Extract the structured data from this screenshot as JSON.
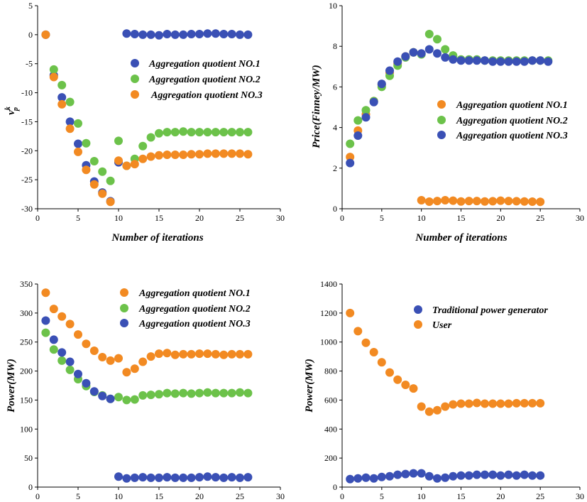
{
  "colors": {
    "blue": "#3a50b5",
    "green": "#6cc24a",
    "orange": "#f28a22"
  },
  "chart_data": [
    {
      "type": "scatter",
      "id": "vp",
      "xlabel": "Number of iterations",
      "ylabel_main": "v",
      "ylabel_sup": "k",
      "ylabel_sub": "p",
      "xlim": [
        0,
        30
      ],
      "ylim": [
        -30,
        5
      ],
      "xticks": [
        "0",
        "5",
        "10",
        "15",
        "20",
        "25",
        "30"
      ],
      "yticks": [
        "5",
        "0",
        "-5",
        "-10",
        "-15",
        "-20",
        "-25",
        "-30"
      ],
      "legend_position": "middle-right",
      "series": [
        {
          "name": "Aggregation quotient NO.1",
          "color": "blue",
          "x": [
            1,
            2,
            3,
            4,
            5,
            6,
            7,
            8,
            9,
            10,
            11,
            12,
            13,
            14,
            15,
            16,
            17,
            18,
            19,
            20,
            21,
            22,
            23,
            24,
            25,
            26
          ],
          "y": [
            0,
            -7,
            -10.8,
            -15,
            -18.8,
            -22.5,
            -25.3,
            -27.2,
            -28.7,
            -22,
            0.2,
            0.1,
            0,
            0,
            -0.1,
            0.1,
            0,
            0,
            0.1,
            0.1,
            0.2,
            0.2,
            0.1,
            0.1,
            0,
            0
          ]
        },
        {
          "name": "Aggregation quotient NO.2",
          "color": "green",
          "x": [
            2,
            3,
            4,
            5,
            6,
            7,
            8,
            9,
            10,
            11,
            12,
            13,
            14,
            15,
            16,
            17,
            18,
            19,
            20,
            21,
            22,
            23,
            24,
            25,
            26
          ],
          "y": [
            -6,
            -8.7,
            -11.6,
            -15.3,
            -18.7,
            -21.8,
            -23.6,
            -25.2,
            -18.3,
            -22.6,
            -21.4,
            -19.2,
            -17.7,
            -17,
            -16.8,
            -16.8,
            -16.7,
            -16.8,
            -16.8,
            -16.8,
            -16.8,
            -16.8,
            -16.8,
            -16.8,
            -16.8
          ]
        },
        {
          "name": "Aggregation quotient NO.3",
          "color": "orange",
          "x": [
            1,
            2,
            3,
            4,
            5,
            6,
            7,
            8,
            9,
            10,
            11,
            12,
            13,
            14,
            15,
            16,
            17,
            18,
            19,
            20,
            21,
            22,
            23,
            24,
            25,
            26
          ],
          "y": [
            0,
            -7.3,
            -12,
            -16.2,
            -20.2,
            -23.3,
            -25.8,
            -27.4,
            -28.8,
            -21.7,
            -22.6,
            -22.3,
            -21.4,
            -21,
            -20.8,
            -20.7,
            -20.7,
            -20.7,
            -20.6,
            -20.6,
            -20.5,
            -20.5,
            -20.5,
            -20.5,
            -20.5,
            -20.6
          ]
        }
      ]
    },
    {
      "type": "scatter",
      "id": "price",
      "xlabel": "Number of iterations",
      "ylabel_main": "Price(Finney/MW)",
      "xlim": [
        0,
        30
      ],
      "ylim": [
        0,
        10
      ],
      "xticks": [
        "0",
        "5",
        "10",
        "15",
        "20",
        "25",
        "30"
      ],
      "yticks": [
        "10",
        "8",
        "6",
        "4",
        "2",
        "0"
      ],
      "legend_position": "middle-right",
      "series": [
        {
          "name": "Aggregation quotient NO.1",
          "color": "orange",
          "x": [
            1,
            2,
            3,
            4,
            5,
            6,
            7,
            8,
            9,
            10,
            11,
            12,
            13,
            14,
            15,
            16,
            17,
            18,
            19,
            20,
            21,
            22,
            23,
            24,
            25
          ],
          "y": [
            2.55,
            3.85,
            4.65,
            5.3,
            6.1,
            6.7,
            7.15,
            7.5,
            7.7,
            0.42,
            0.35,
            0.38,
            0.42,
            0.4,
            0.36,
            0.38,
            0.38,
            0.36,
            0.37,
            0.4,
            0.38,
            0.37,
            0.36,
            0.35,
            0.34
          ]
        },
        {
          "name": "Aggregation quotient NO.2",
          "color": "green",
          "x": [
            1,
            2,
            3,
            4,
            5,
            6,
            7,
            8,
            9,
            10,
            11,
            12,
            13,
            14,
            15,
            16,
            17,
            18,
            19,
            20,
            21,
            22,
            23,
            24,
            25,
            26
          ],
          "y": [
            3.2,
            4.35,
            4.85,
            5.3,
            6.0,
            6.55,
            7.05,
            7.45,
            7.7,
            7.6,
            8.6,
            8.35,
            7.85,
            7.55,
            7.35,
            7.35,
            7.35,
            7.3,
            7.3,
            7.3,
            7.3,
            7.3,
            7.3,
            7.3,
            7.3,
            7.3
          ]
        },
        {
          "name": "Aggregation quotient NO.3",
          "color": "blue",
          "x": [
            1,
            2,
            3,
            4,
            5,
            6,
            7,
            8,
            9,
            10,
            11,
            12,
            13,
            14,
            15,
            16,
            17,
            18,
            19,
            20,
            21,
            22,
            23,
            24,
            25,
            26
          ],
          "y": [
            2.25,
            3.6,
            4.5,
            5.25,
            6.15,
            6.8,
            7.25,
            7.5,
            7.7,
            7.65,
            7.85,
            7.65,
            7.45,
            7.35,
            7.3,
            7.3,
            7.3,
            7.3,
            7.25,
            7.25,
            7.25,
            7.25,
            7.25,
            7.3,
            7.3,
            7.25
          ]
        }
      ]
    },
    {
      "type": "scatter",
      "id": "power_aq",
      "xlabel": "",
      "ylabel_main": "Power(MW)",
      "xlim": [
        0,
        30
      ],
      "ylim": [
        0,
        350
      ],
      "xticks": [
        "0",
        "5",
        "10",
        "15",
        "20",
        "25",
        "30"
      ],
      "yticks": [
        "350",
        "300",
        "250",
        "200",
        "150",
        "100",
        "50",
        "0"
      ],
      "legend_position": "top-right",
      "series": [
        {
          "name": "Aggregation quotient NO.1",
          "color": "orange",
          "x": [
            1,
            2,
            3,
            4,
            5,
            6,
            7,
            8,
            9,
            10,
            11,
            12,
            13,
            14,
            15,
            16,
            17,
            18,
            19,
            20,
            21,
            22,
            23,
            24,
            25,
            26
          ],
          "y": [
            335,
            307,
            294,
            281,
            263,
            247,
            235,
            224,
            218,
            222,
            198,
            204,
            216,
            225,
            230,
            231,
            228,
            229,
            229,
            230,
            230,
            229,
            228,
            229,
            229,
            229
          ]
        },
        {
          "name": "Aggregation quotient NO.2",
          "color": "green",
          "x": [
            1,
            2,
            3,
            4,
            5,
            6,
            7,
            8,
            9,
            10,
            11,
            12,
            13,
            14,
            15,
            16,
            17,
            18,
            19,
            20,
            21,
            22,
            23,
            24,
            25,
            26
          ],
          "y": [
            266,
            237,
            218,
            202,
            186,
            174,
            164,
            158,
            152,
            155,
            150,
            151,
            158,
            159,
            160,
            162,
            161,
            162,
            161,
            162,
            163,
            162,
            162,
            162,
            163,
            162
          ]
        },
        {
          "name": "Aggregation quotient NO.3",
          "color": "blue",
          "x": [
            1,
            2,
            3,
            4,
            5,
            6,
            7,
            8,
            9,
            10,
            11,
            12,
            13,
            14,
            15,
            16,
            17,
            18,
            19,
            20,
            21,
            22,
            23,
            24,
            25,
            26
          ],
          "y": [
            287,
            254,
            232,
            216,
            195,
            179,
            165,
            157,
            152,
            18,
            15,
            16,
            17,
            16,
            16,
            17,
            16,
            16,
            16,
            17,
            18,
            17,
            16,
            17,
            16,
            17
          ]
        }
      ]
    },
    {
      "type": "scatter",
      "id": "power_gen_user",
      "xlabel": "",
      "ylabel_main": "Power(MW)",
      "xlim": [
        0,
        30
      ],
      "ylim": [
        0,
        1400
      ],
      "xticks": [
        "0",
        "5",
        "10",
        "15",
        "20",
        "25",
        "30"
      ],
      "yticks": [
        "1400",
        "1200",
        "1000",
        "800",
        "600",
        "400",
        "200",
        "0"
      ],
      "legend_position": "top-right",
      "series": [
        {
          "name": "Traditional power generator",
          "color": "blue",
          "x": [
            1,
            2,
            3,
            4,
            5,
            6,
            7,
            8,
            9,
            10,
            11,
            12,
            13,
            14,
            15,
            16,
            17,
            18,
            19,
            20,
            21,
            22,
            23,
            24,
            25
          ],
          "y": [
            55,
            60,
            65,
            60,
            70,
            75,
            85,
            90,
            95,
            95,
            75,
            60,
            65,
            75,
            80,
            80,
            85,
            85,
            85,
            80,
            85,
            80,
            85,
            80,
            80
          ]
        },
        {
          "name": "User",
          "color": "orange",
          "x": [
            1,
            2,
            3,
            4,
            5,
            6,
            7,
            8,
            9,
            10,
            11,
            12,
            13,
            14,
            15,
            16,
            17,
            18,
            19,
            20,
            21,
            22,
            23,
            24,
            25
          ],
          "y": [
            1200,
            1075,
            995,
            930,
            860,
            790,
            740,
            705,
            680,
            555,
            520,
            530,
            555,
            570,
            575,
            575,
            580,
            575,
            575,
            575,
            575,
            578,
            578,
            578,
            578
          ]
        }
      ]
    }
  ]
}
